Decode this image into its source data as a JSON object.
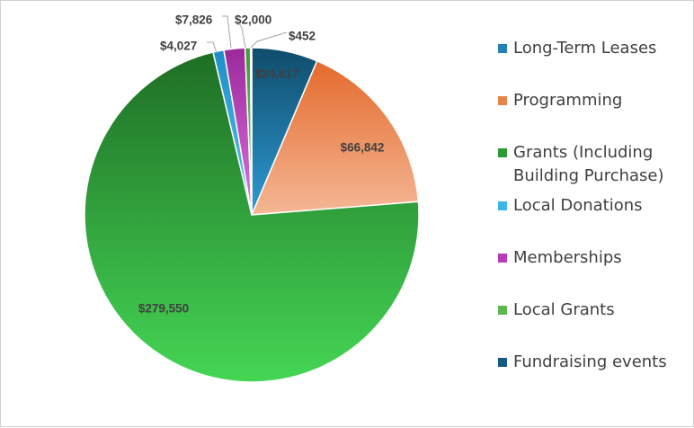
{
  "chart_data": {
    "type": "pie",
    "title": "",
    "legend_position": "right",
    "categories": [
      "Long-Term Leases",
      "Programming",
      "Grants (Including Building Purchase)",
      "Local Donations",
      "Memberships",
      "Local Grants",
      "Fundraising events"
    ],
    "legend_lines": [
      [
        "Long-Term Leases"
      ],
      [
        "Programming"
      ],
      [
        "Grants (Including",
        "Building Purchase)"
      ],
      [
        "Local Donations"
      ],
      [
        "Memberships"
      ],
      [
        "Local Grants"
      ],
      [
        "Fundraising events"
      ]
    ],
    "slices": [
      {
        "name": "Fundraising events",
        "value": 24617,
        "label": "$24,617",
        "color_light": "#2e9ad4",
        "color_dark": "#0f4c6b"
      },
      {
        "name": "Programming",
        "value": 66842,
        "label": "$66,842",
        "color_light": "#f4b795",
        "color_dark": "#e46a2c"
      },
      {
        "name": "Grants (Including Building Purchase)",
        "value": 279550,
        "label": "$279,550",
        "color_light": "#45d655",
        "color_dark": "#1e6e24"
      },
      {
        "name": "Local Donations",
        "value": 4027,
        "label": "$4,027",
        "color_light": "#60c8ef",
        "color_dark": "#1a8dc8"
      },
      {
        "name": "Memberships",
        "value": 7826,
        "label": "$7,826",
        "color_light": "#e070e0",
        "color_dark": "#9a2a9a"
      },
      {
        "name": "Local Grants",
        "value": 2000,
        "label": "$2,000",
        "color_light": "#7dd36e",
        "color_dark": "#3e9a35"
      },
      {
        "name": "Long-Term Leases",
        "value": 452,
        "label": "$452",
        "color_light": "#3ba3d8",
        "color_dark": "#175f86"
      }
    ],
    "legend_colors": [
      "#2381b8",
      "#e8834a",
      "#2a9a32",
      "#3bb4e6",
      "#b83cb8",
      "#5cb84c",
      "#135a80"
    ]
  }
}
